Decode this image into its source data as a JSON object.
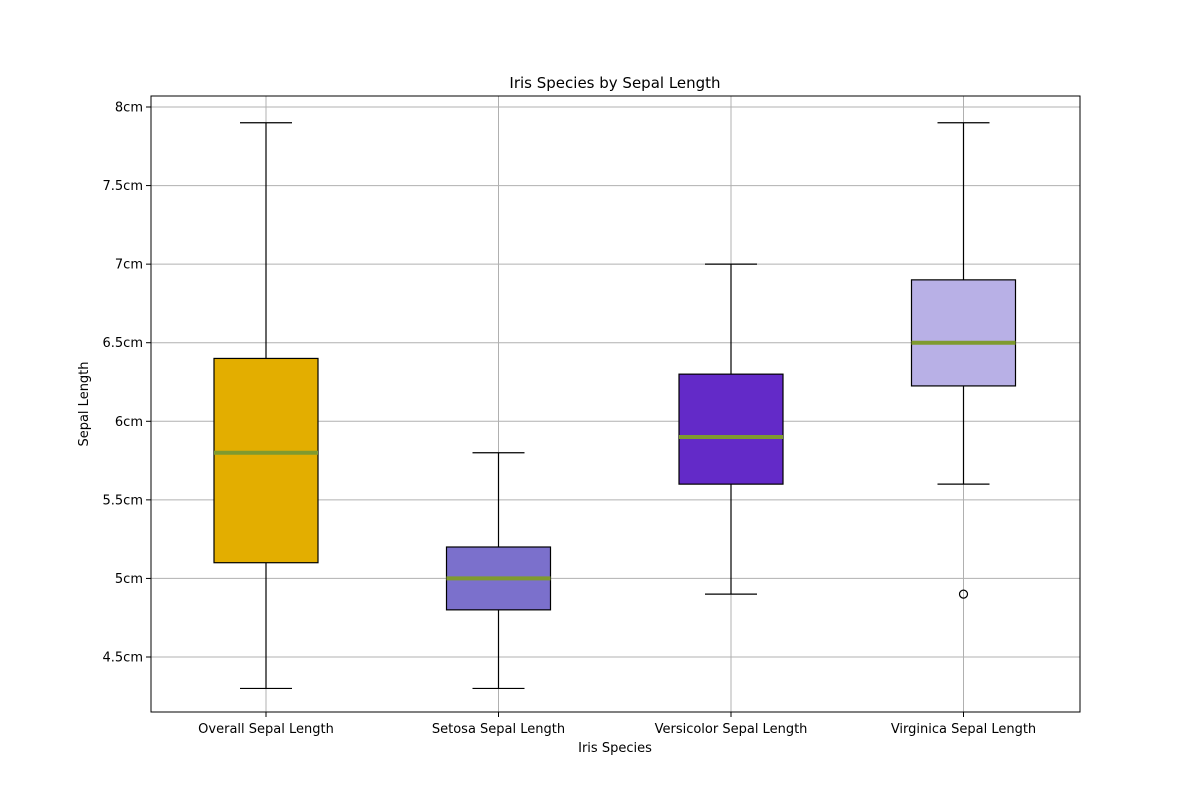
{
  "chart_data": {
    "type": "box",
    "title": "Iris Species by Sepal Length",
    "xlabel": "Iris Species",
    "ylabel": "Sepal Length",
    "ylim": [
      4.15,
      8.07
    ],
    "y_ticks": [
      {
        "value": 4.5,
        "label": "4.5cm"
      },
      {
        "value": 5.0,
        "label": "5cm"
      },
      {
        "value": 5.5,
        "label": "5.5cm"
      },
      {
        "value": 6.0,
        "label": "6cm"
      },
      {
        "value": 6.5,
        "label": "6.5cm"
      },
      {
        "value": 7.0,
        "label": "7cm"
      },
      {
        "value": 7.5,
        "label": "7.5cm"
      },
      {
        "value": 8.0,
        "label": "8cm"
      }
    ],
    "grid": true,
    "median_color": "#7f9a2f",
    "boxes": [
      {
        "category": "Overall Sepal Length",
        "whisker_low": 4.3,
        "q1": 5.1,
        "median": 5.8,
        "q3": 6.4,
        "whisker_high": 7.9,
        "outliers": [],
        "color": "#e3ae00"
      },
      {
        "category": "Setosa Sepal Length",
        "whisker_low": 4.3,
        "q1": 4.8,
        "median": 5.0,
        "q3": 5.2,
        "whisker_high": 5.8,
        "outliers": [],
        "color": "#7b70cc"
      },
      {
        "category": "Versicolor Sepal Length",
        "whisker_low": 4.9,
        "q1": 5.6,
        "median": 5.9,
        "q3": 6.3,
        "whisker_high": 7.0,
        "outliers": [],
        "color": "#632ac8"
      },
      {
        "category": "Virginica Sepal Length",
        "whisker_low": 5.6,
        "q1": 6.225,
        "median": 6.5,
        "q3": 6.9,
        "whisker_high": 7.9,
        "outliers": [
          4.9
        ],
        "color": "#b8b0e6"
      }
    ]
  }
}
